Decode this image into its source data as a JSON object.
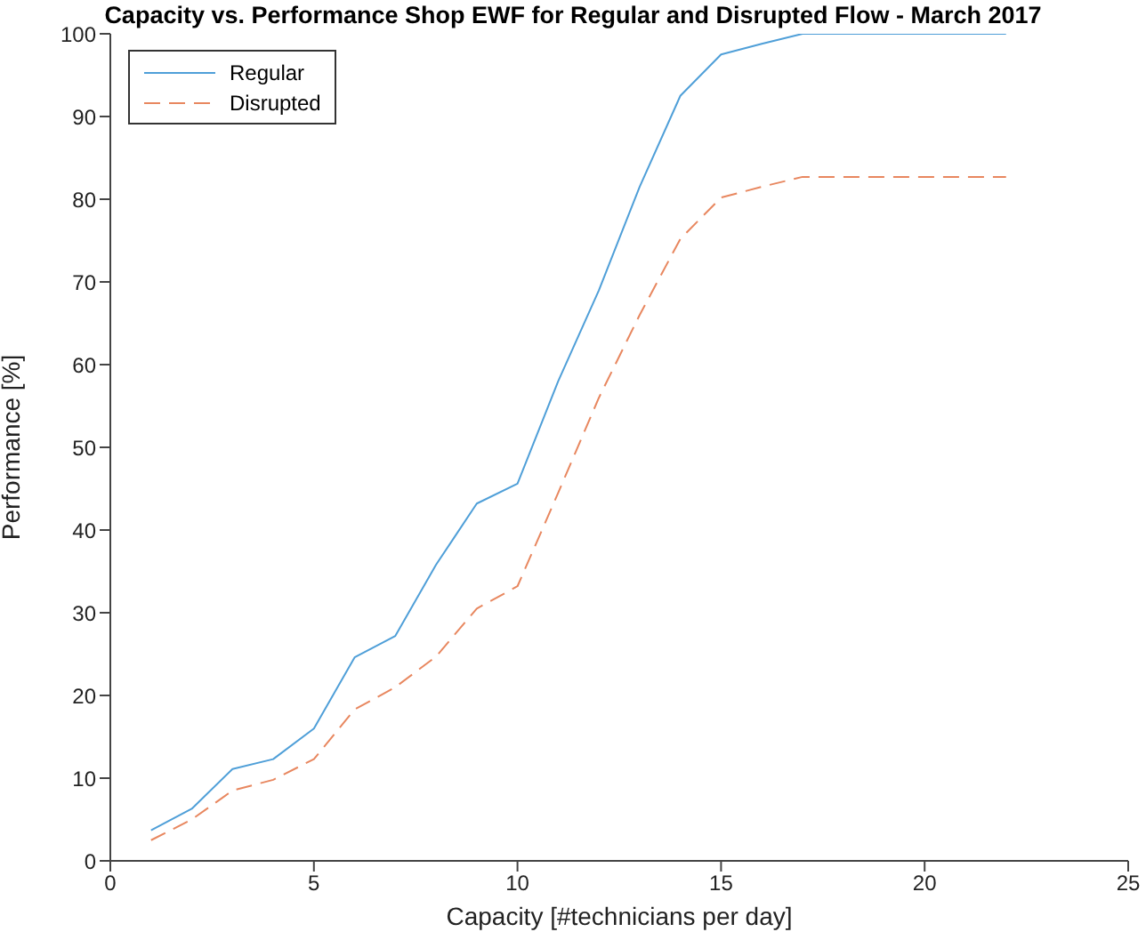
{
  "chart_data": {
    "type": "line",
    "title": "Capacity vs. Performance Shop EWF for Regular and Disrupted Flow - March 2017",
    "xlabel": "Capacity [#technicians per day]",
    "ylabel": "Performance [%]",
    "x": [
      1,
      2,
      3,
      4,
      5,
      6,
      7,
      8,
      9,
      10,
      11,
      12,
      13,
      14,
      15,
      16,
      17,
      18,
      19,
      20,
      21,
      22
    ],
    "series": [
      {
        "name": "Regular",
        "color": "#4f9fd8",
        "line_style": "solid",
        "values": [
          3.7,
          6.3,
          11.1,
          12.3,
          16,
          24.6,
          27.2,
          35.8,
          43.2,
          45.6,
          58,
          69,
          81.5,
          92.5,
          97.5,
          98.8,
          100,
          100,
          100,
          100,
          100,
          100
        ]
      },
      {
        "name": "Disrupted",
        "color": "#e8875f",
        "line_style": "dashed",
        "values": [
          2.5,
          5,
          8.5,
          9.8,
          12.3,
          18.3,
          21,
          24.7,
          30.5,
          33.2,
          44.5,
          56,
          66,
          75.2,
          80.2,
          81.5,
          82.7,
          82.7,
          82.7,
          82.7,
          82.7,
          82.7
        ]
      }
    ],
    "xlim": [
      0,
      25
    ],
    "xticks": [
      0,
      5,
      10,
      15,
      20,
      25
    ],
    "ylim": [
      0,
      100
    ],
    "yticks": [
      0,
      10,
      20,
      30,
      40,
      50,
      60,
      70,
      80,
      90,
      100
    ],
    "grid": false,
    "legend": "top left",
    "marker": "none"
  }
}
